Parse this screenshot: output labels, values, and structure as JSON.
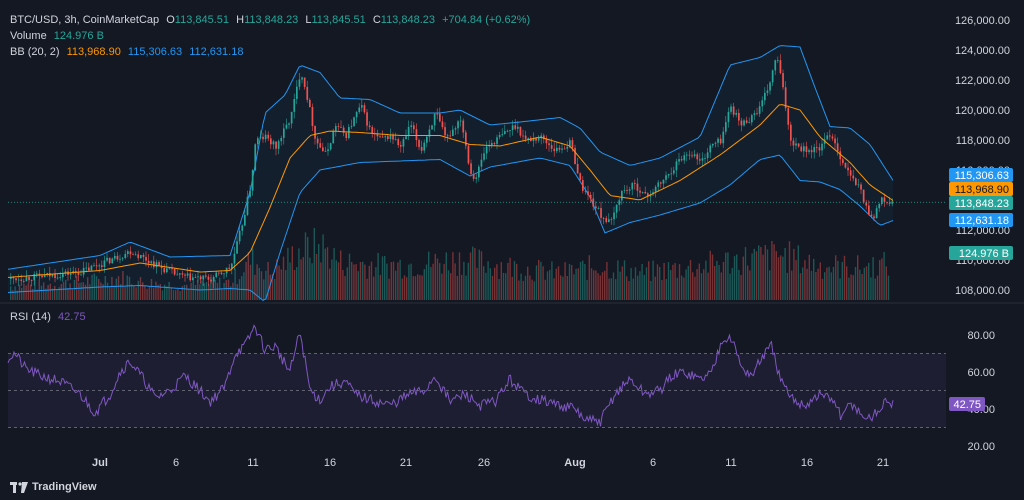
{
  "header": {
    "symbol": "BTC/USD, 3h, CoinMarketCap",
    "o_label": "O",
    "o_value": "113,845.51",
    "h_label": "H",
    "h_value": "113,848.23",
    "l_label": "L",
    "l_value": "113,845.51",
    "c_label": "C",
    "c_value": "113,848.23",
    "change": "+704.84 (+0.62%)"
  },
  "volume_legend": {
    "label": "Volume",
    "value": "124.976 B"
  },
  "bb_legend": {
    "label": "BB (20, 2)",
    "basis": "113,968.90",
    "upper": "115,306.63",
    "lower": "112,631.18"
  },
  "rsi_legend": {
    "label": "RSI (14)",
    "value": "42.75"
  },
  "price_badges": {
    "upper": "115,306.63",
    "basis": "113,968.90",
    "close": "113,848.23",
    "lower": "112,631.18",
    "volume": "124.976 B",
    "rsi": "42.75"
  },
  "brand": "TradingView",
  "colors": {
    "bg": "#141822",
    "up": "#26a69a",
    "down": "#ef5350",
    "bb_band": "#2196f3",
    "bb_basis": "#ff9800",
    "rsi": "#7e57c2"
  },
  "chart_data": [
    {
      "type": "candlestick",
      "title": "BTC/USD, 3h, CoinMarketCap",
      "price_ticks": [
        108000,
        110000,
        112000,
        114000,
        116000,
        118000,
        120000,
        122000,
        124000,
        126000
      ],
      "price_tick_labels": [
        "108,000.00",
        "110,000.00",
        "112,000.00",
        "114,000.00",
        "116,000.00",
        "118,000.00",
        "120,000.00",
        "122,000.00",
        "124,000.00",
        "126,000.00"
      ],
      "ylim": [
        107000,
        127000
      ],
      "x_tick_labels": [
        "Jul",
        "6",
        "11",
        "16",
        "21",
        "26",
        "Aug",
        "6",
        "11",
        "16",
        "21"
      ],
      "close_path": [
        [
          0,
          108700
        ],
        [
          40,
          108900
        ],
        [
          80,
          109200
        ],
        [
          120,
          110300
        ],
        [
          130,
          110600
        ],
        [
          160,
          109500
        ],
        [
          180,
          108900
        ],
        [
          210,
          108700
        ],
        [
          230,
          109500
        ],
        [
          240,
          112000
        ],
        [
          250,
          115000
        ],
        [
          255,
          118000
        ],
        [
          265,
          118200
        ],
        [
          275,
          117500
        ],
        [
          290,
          119500
        ],
        [
          300,
          122700
        ],
        [
          306,
          121000
        ],
        [
          315,
          118000
        ],
        [
          325,
          117000
        ],
        [
          335,
          119000
        ],
        [
          345,
          118300
        ],
        [
          360,
          120300
        ],
        [
          370,
          118500
        ],
        [
          380,
          118000
        ],
        [
          390,
          118300
        ],
        [
          400,
          117500
        ],
        [
          410,
          119000
        ],
        [
          420,
          117300
        ],
        [
          435,
          119800
        ],
        [
          445,
          118000
        ],
        [
          460,
          119500
        ],
        [
          470,
          115800
        ],
        [
          475,
          115500
        ],
        [
          485,
          117500
        ],
        [
          495,
          118000
        ],
        [
          505,
          118500
        ],
        [
          515,
          119000
        ],
        [
          525,
          118000
        ],
        [
          540,
          118200
        ],
        [
          555,
          117300
        ],
        [
          570,
          117800
        ],
        [
          580,
          115000
        ],
        [
          590,
          114000
        ],
        [
          600,
          113000
        ],
        [
          610,
          112400
        ],
        [
          620,
          114500
        ],
        [
          635,
          115000
        ],
        [
          645,
          114200
        ],
        [
          655,
          114800
        ],
        [
          665,
          115500
        ],
        [
          680,
          116800
        ],
        [
          690,
          117200
        ],
        [
          700,
          116500
        ],
        [
          710,
          117600
        ],
        [
          720,
          118000
        ],
        [
          730,
          120300
        ],
        [
          740,
          119000
        ],
        [
          750,
          119500
        ],
        [
          760,
          120200
        ],
        [
          770,
          122000
        ],
        [
          776,
          123700
        ],
        [
          783,
          121000
        ],
        [
          790,
          118000
        ],
        [
          800,
          117500
        ],
        [
          810,
          117300
        ],
        [
          820,
          117500
        ],
        [
          830,
          118500
        ],
        [
          840,
          116800
        ],
        [
          850,
          115500
        ],
        [
          860,
          114700
        ],
        [
          865,
          113500
        ],
        [
          872,
          112800
        ],
        [
          880,
          114000
        ],
        [
          888,
          113800
        ],
        [
          893,
          113848
        ]
      ],
      "bb_basis_path": [
        [
          0,
          108800
        ],
        [
          100,
          109300
        ],
        [
          140,
          109800
        ],
        [
          200,
          109200
        ],
        [
          230,
          109300
        ],
        [
          250,
          110500
        ],
        [
          270,
          113500
        ],
        [
          290,
          116800
        ],
        [
          310,
          118300
        ],
        [
          330,
          118600
        ],
        [
          360,
          118500
        ],
        [
          400,
          118300
        ],
        [
          440,
          118300
        ],
        [
          470,
          117700
        ],
        [
          500,
          117600
        ],
        [
          540,
          118200
        ],
        [
          570,
          117600
        ],
        [
          590,
          116000
        ],
        [
          610,
          114300
        ],
        [
          640,
          114000
        ],
        [
          680,
          115300
        ],
        [
          720,
          117000
        ],
        [
          760,
          119000
        ],
        [
          780,
          120400
        ],
        [
          800,
          120000
        ],
        [
          820,
          118200
        ],
        [
          850,
          116500
        ],
        [
          870,
          115000
        ],
        [
          893,
          113968
        ]
      ],
      "bb_upper_path": [
        [
          0,
          109300
        ],
        [
          100,
          110300
        ],
        [
          130,
          111200
        ],
        [
          170,
          110200
        ],
        [
          230,
          110300
        ],
        [
          250,
          114500
        ],
        [
          265,
          119800
        ],
        [
          285,
          121000
        ],
        [
          300,
          123000
        ],
        [
          320,
          122500
        ],
        [
          340,
          120800
        ],
        [
          370,
          120700
        ],
        [
          400,
          119800
        ],
        [
          440,
          119800
        ],
        [
          460,
          120000
        ],
        [
          490,
          119000
        ],
        [
          520,
          119200
        ],
        [
          560,
          119500
        ],
        [
          580,
          118800
        ],
        [
          600,
          117200
        ],
        [
          630,
          116300
        ],
        [
          660,
          116800
        ],
        [
          700,
          118200
        ],
        [
          730,
          123000
        ],
        [
          760,
          123500
        ],
        [
          780,
          124300
        ],
        [
          800,
          124200
        ],
        [
          815,
          121500
        ],
        [
          830,
          118900
        ],
        [
          850,
          118800
        ],
        [
          870,
          117700
        ],
        [
          893,
          115306
        ]
      ],
      "bb_lower_path": [
        [
          0,
          107800
        ],
        [
          100,
          108200
        ],
        [
          140,
          108300
        ],
        [
          200,
          108000
        ],
        [
          230,
          108100
        ],
        [
          250,
          108000
        ],
        [
          265,
          107200
        ],
        [
          280,
          110500
        ],
        [
          300,
          114500
        ],
        [
          320,
          116000
        ],
        [
          360,
          116500
        ],
        [
          400,
          116600
        ],
        [
          440,
          116700
        ],
        [
          470,
          115600
        ],
        [
          490,
          116200
        ],
        [
          540,
          116800
        ],
        [
          570,
          116300
        ],
        [
          590,
          114200
        ],
        [
          605,
          111800
        ],
        [
          630,
          112500
        ],
        [
          660,
          113000
        ],
        [
          700,
          113800
        ],
        [
          730,
          115000
        ],
        [
          760,
          116700
        ],
        [
          780,
          117000
        ],
        [
          800,
          115300
        ],
        [
          820,
          115200
        ],
        [
          840,
          114700
        ],
        [
          860,
          113600
        ],
        [
          880,
          112300
        ],
        [
          893,
          112631
        ]
      ],
      "volume_path": [
        [
          0,
          0.15
        ],
        [
          60,
          0.18
        ],
        [
          120,
          0.25
        ],
        [
          140,
          0.2
        ],
        [
          180,
          0.16
        ],
        [
          230,
          0.2
        ],
        [
          250,
          0.45
        ],
        [
          270,
          0.3
        ],
        [
          300,
          0.55
        ],
        [
          320,
          0.6
        ],
        [
          340,
          0.42
        ],
        [
          380,
          0.38
        ],
        [
          420,
          0.4
        ],
        [
          460,
          0.45
        ],
        [
          480,
          0.42
        ],
        [
          520,
          0.35
        ],
        [
          560,
          0.3
        ],
        [
          600,
          0.38
        ],
        [
          640,
          0.3
        ],
        [
          700,
          0.38
        ],
        [
          740,
          0.45
        ],
        [
          780,
          0.5
        ],
        [
          820,
          0.38
        ],
        [
          860,
          0.36
        ],
        [
          890,
          0.4
        ]
      ]
    },
    {
      "type": "line",
      "title": "RSI (14)",
      "y_tick_labels": [
        "20.00",
        "40.00",
        "60.00",
        "80.00"
      ],
      "y_ticks": [
        20,
        40,
        60,
        80
      ],
      "ylim": [
        17,
        87
      ],
      "band": [
        30,
        70
      ],
      "midline": 50,
      "series": [
        {
          "name": "RSI (14)",
          "values_path": [
            [
              0,
              65
            ],
            [
              15,
              70
            ],
            [
              25,
              62
            ],
            [
              40,
              58
            ],
            [
              60,
              55
            ],
            [
              80,
              48
            ],
            [
              95,
              38
            ],
            [
              110,
              48
            ],
            [
              120,
              60
            ],
            [
              130,
              66
            ],
            [
              145,
              55
            ],
            [
              155,
              46
            ],
            [
              170,
              50
            ],
            [
              185,
              58
            ],
            [
              200,
              50
            ],
            [
              210,
              44
            ],
            [
              225,
              52
            ],
            [
              235,
              70
            ],
            [
              245,
              74
            ],
            [
              255,
              85
            ],
            [
              265,
              72
            ],
            [
              275,
              74
            ],
            [
              290,
              60
            ],
            [
              300,
              82
            ],
            [
              310,
              50
            ],
            [
              320,
              45
            ],
            [
              330,
              52
            ],
            [
              345,
              55
            ],
            [
              355,
              48
            ],
            [
              370,
              45
            ],
            [
              390,
              42
            ],
            [
              410,
              48
            ],
            [
              425,
              50
            ],
            [
              435,
              58
            ],
            [
              450,
              44
            ],
            [
              465,
              48
            ],
            [
              480,
              42
            ],
            [
              495,
              44
            ],
            [
              510,
              56
            ],
            [
              525,
              48
            ],
            [
              540,
              45
            ],
            [
              560,
              42
            ],
            [
              575,
              40
            ],
            [
              585,
              34
            ],
            [
              600,
              33
            ],
            [
              615,
              48
            ],
            [
              630,
              56
            ],
            [
              645,
              48
            ],
            [
              660,
              50
            ],
            [
              672,
              58
            ],
            [
              685,
              60
            ],
            [
              700,
              56
            ],
            [
              712,
              60
            ],
            [
              722,
              78
            ],
            [
              730,
              80
            ],
            [
              742,
              62
            ],
            [
              752,
              58
            ],
            [
              762,
              68
            ],
            [
              772,
              74
            ],
            [
              780,
              56
            ],
            [
              790,
              46
            ],
            [
              805,
              42
            ],
            [
              820,
              48
            ],
            [
              835,
              44
            ],
            [
              842,
              34
            ],
            [
              850,
              44
            ],
            [
              860,
              38
            ],
            [
              868,
              34
            ],
            [
              880,
              40
            ],
            [
              888,
              45
            ],
            [
              893,
              42.75
            ]
          ]
        }
      ]
    }
  ]
}
